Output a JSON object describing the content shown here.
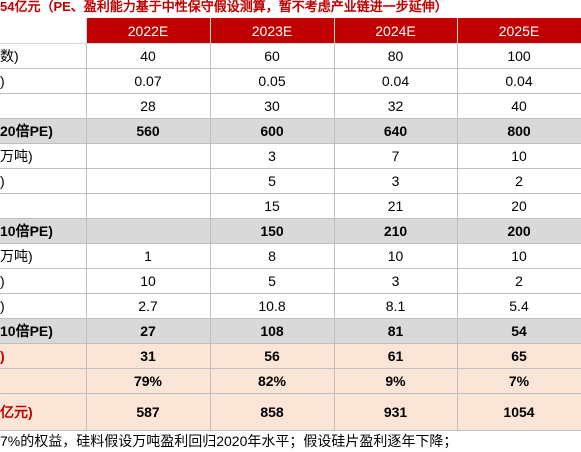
{
  "title": "54亿元（PE、盈利能力基于中性保守假设测算，暂不考虑产业链进一步延伸）",
  "years": [
    "2022E",
    "2023E",
    "2024E",
    "2025E"
  ],
  "rows": [
    {
      "label": "数)",
      "values": [
        "40",
        "60",
        "80",
        "100"
      ],
      "style": "plain"
    },
    {
      "label": ")",
      "values": [
        "0.07",
        "0.05",
        "0.04",
        "0.04"
      ],
      "style": "plain"
    },
    {
      "label": "",
      "values": [
        "28",
        "30",
        "32",
        "40"
      ],
      "style": "plain"
    },
    {
      "label": "20倍PE)",
      "values": [
        "560",
        "600",
        "640",
        "800"
      ],
      "style": "sum"
    },
    {
      "label": "万吨)",
      "values": [
        "",
        "3",
        "7",
        "10"
      ],
      "style": "plain"
    },
    {
      "label": ")",
      "values": [
        "",
        "5",
        "3",
        "2"
      ],
      "style": "plain"
    },
    {
      "label": "",
      "values": [
        "",
        "15",
        "21",
        "20"
      ],
      "style": "plain"
    },
    {
      "label": "10倍PE)",
      "values": [
        "",
        "150",
        "210",
        "200"
      ],
      "style": "sum"
    },
    {
      "label": "万吨)",
      "values": [
        "1",
        "8",
        "10",
        "10"
      ],
      "style": "plain"
    },
    {
      "label": ")",
      "values": [
        "10",
        "5",
        "3",
        "2"
      ],
      "style": "plain"
    },
    {
      "label": ")",
      "values": [
        "2.7",
        "10.8",
        "8.1",
        "5.4"
      ],
      "style": "plain"
    },
    {
      "label": "10倍PE)",
      "values": [
        "27",
        "108",
        "81",
        "54"
      ],
      "style": "sum"
    },
    {
      "label": ")",
      "values": [
        "31",
        "56",
        "61",
        "65"
      ],
      "style": "red"
    },
    {
      "label": "",
      "values": [
        "79%",
        "82%",
        "9%",
        "7%"
      ],
      "style": "red"
    },
    {
      "label": "亿元)",
      "values": [
        "587",
        "858",
        "931",
        "1054"
      ],
      "style": "red total"
    }
  ],
  "note": "7%的权益，硅料假设万吨盈利回归2020年水平；假设硅片盈利逐年下降；"
}
